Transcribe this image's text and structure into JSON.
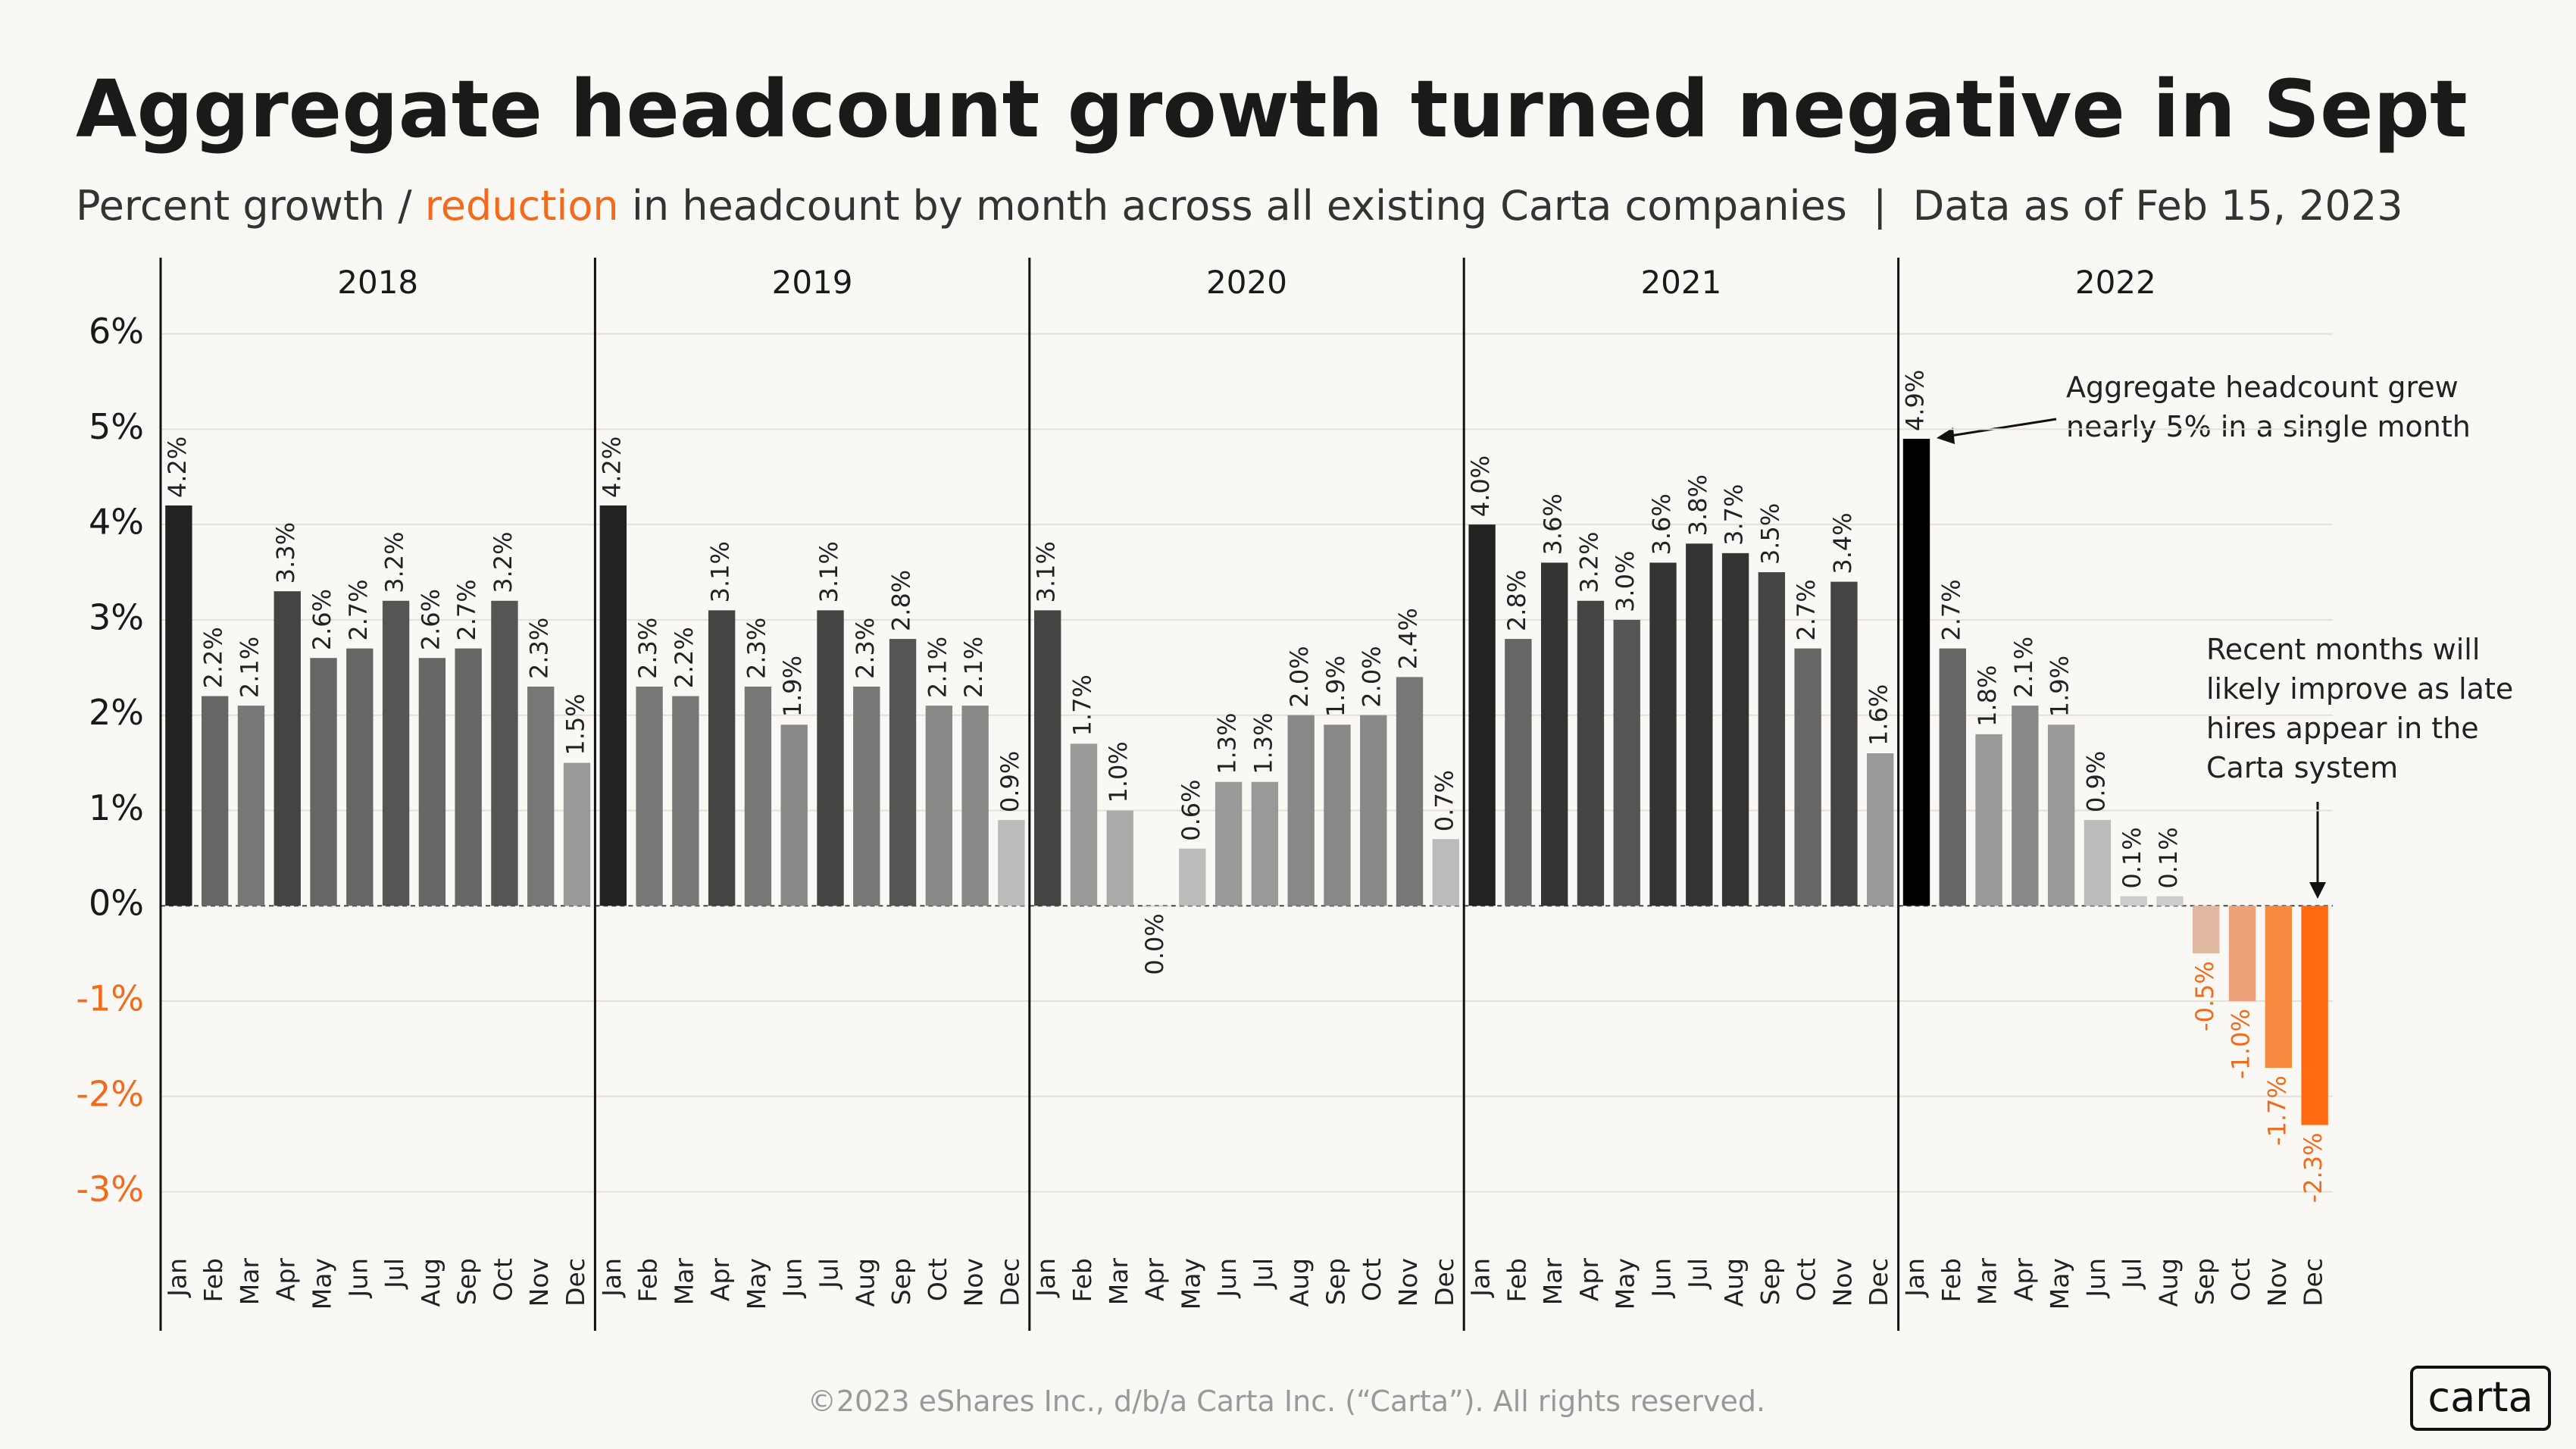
{
  "header": {
    "title": "Aggregate headcount growth turned negative in Sept",
    "subtitle": [
      "Percent growth / ",
      "reduction",
      " in headcount by month across all existing Carta companies  |  Data as of Feb 15, 2023"
    ]
  },
  "chart_data": [
    {
      "type": "bar",
      "title": "2018",
      "categories": [
        "Jan",
        "Feb",
        "Mar",
        "Apr",
        "May",
        "Jun",
        "Jul",
        "Aug",
        "Sep",
        "Oct",
        "Nov",
        "Dec"
      ],
      "values": [
        4.2,
        2.2,
        2.1,
        3.3,
        2.6,
        2.7,
        3.2,
        2.6,
        2.7,
        3.2,
        2.3,
        1.5
      ],
      "value_labels": [
        "4.2%",
        "2.2%",
        "2.1%",
        "3.3%",
        "2.6%",
        "2.7%",
        "3.2%",
        "2.6%",
        "2.7%",
        "3.2%",
        "2.3%",
        "1.5%"
      ],
      "colors": [
        "#222222",
        "#666666",
        "#777777",
        "#444444",
        "#666666",
        "#666666",
        "#555555",
        "#666666",
        "#666666",
        "#555555",
        "#777777",
        "#999999"
      ],
      "ylim": [
        -3.6,
        6.8
      ],
      "yticks": [
        {
          "value": -3,
          "label": "-3%"
        },
        {
          "value": -2,
          "label": "-2%"
        },
        {
          "value": -1,
          "label": "-1%"
        },
        {
          "value": 0,
          "label": "0%"
        },
        {
          "value": 1,
          "label": "1%"
        },
        {
          "value": 2,
          "label": "2%"
        },
        {
          "value": 3,
          "label": "3%"
        },
        {
          "value": 4,
          "label": "4%"
        },
        {
          "value": 5,
          "label": "5%"
        },
        {
          "value": 6,
          "label": "6%"
        }
      ],
      "grid": true
    },
    {
      "type": "bar",
      "title": "2019",
      "categories": [
        "Jan",
        "Feb",
        "Mar",
        "Apr",
        "May",
        "Jun",
        "Jul",
        "Aug",
        "Sep",
        "Oct",
        "Nov",
        "Dec"
      ],
      "values": [
        4.2,
        2.3,
        2.2,
        3.1,
        2.3,
        1.9,
        3.1,
        2.3,
        2.8,
        2.1,
        2.1,
        0.9
      ],
      "value_labels": [
        "4.2%",
        "2.3%",
        "2.2%",
        "3.1%",
        "2.3%",
        "1.9%",
        "3.1%",
        "2.3%",
        "2.8%",
        "2.1%",
        "2.1%",
        "0.9%"
      ],
      "colors": [
        "#222222",
        "#777777",
        "#777777",
        "#444444",
        "#777777",
        "#888888",
        "#444444",
        "#777777",
        "#555555",
        "#888888",
        "#888888",
        "#bbbbbb"
      ],
      "ylim": [
        -3.6,
        6.8
      ],
      "yticks": [
        -3,
        -2,
        -1,
        0,
        1,
        2,
        3,
        4,
        5,
        6
      ],
      "grid": true
    },
    {
      "type": "bar",
      "title": "2020",
      "categories": [
        "Jan",
        "Feb",
        "Mar",
        "Apr",
        "May",
        "Jun",
        "Jul",
        "Aug",
        "Sep",
        "Oct",
        "Nov",
        "Dec"
      ],
      "values": [
        3.1,
        1.7,
        1.0,
        0.0,
        0.6,
        1.3,
        1.3,
        2.0,
        1.9,
        2.0,
        2.4,
        0.7
      ],
      "value_labels": [
        "3.1%",
        "1.7%",
        "1.0%",
        "0.0%",
        "0.6%",
        "1.3%",
        "1.3%",
        "2.0%",
        "1.9%",
        "2.0%",
        "2.4%",
        "0.7%"
      ],
      "colors": [
        "#444444",
        "#999999",
        "#aaaaaa",
        "#bbbbbb",
        "#bbbbbb",
        "#999999",
        "#999999",
        "#888888",
        "#888888",
        "#888888",
        "#777777",
        "#bbbbbb"
      ],
      "ylim": [
        -3.6,
        6.8
      ],
      "yticks": [
        -3,
        -2,
        -1,
        0,
        1,
        2,
        3,
        4,
        5,
        6
      ],
      "grid": true
    },
    {
      "type": "bar",
      "title": "2021",
      "categories": [
        "Jan",
        "Feb",
        "Mar",
        "Apr",
        "May",
        "Jun",
        "Jul",
        "Aug",
        "Sep",
        "Oct",
        "Nov",
        "Dec"
      ],
      "values": [
        4.0,
        2.8,
        3.6,
        3.2,
        3.0,
        3.6,
        3.8,
        3.7,
        3.5,
        2.7,
        3.4,
        1.6
      ],
      "value_labels": [
        "4.0%",
        "2.8%",
        "3.6%",
        "3.2%",
        "3.0%",
        "3.6%",
        "3.8%",
        "3.7%",
        "3.5%",
        "2.7%",
        "3.4%",
        "1.6%"
      ],
      "colors": [
        "#222222",
        "#666666",
        "#333333",
        "#444444",
        "#555555",
        "#333333",
        "#333333",
        "#333333",
        "#444444",
        "#666666",
        "#444444",
        "#999999"
      ],
      "ylim": [
        -3.6,
        6.8
      ],
      "yticks": [
        -3,
        -2,
        -1,
        0,
        1,
        2,
        3,
        4,
        5,
        6
      ],
      "grid": true
    },
    {
      "type": "bar",
      "title": "2022",
      "categories": [
        "Jan",
        "Feb",
        "Mar",
        "Apr",
        "May",
        "Jun",
        "Jul",
        "Aug",
        "Sep",
        "Oct",
        "Nov",
        "Dec"
      ],
      "values": [
        4.9,
        2.7,
        1.8,
        2.1,
        1.9,
        0.9,
        0.1,
        0.1,
        -0.5,
        -1.0,
        -1.7,
        -2.3
      ],
      "value_labels": [
        "4.9%",
        "2.7%",
        "1.8%",
        "2.1%",
        "1.9%",
        "0.9%",
        "0.1%",
        "0.1%",
        "-0.5%",
        "-1.0%",
        "-1.7%",
        "-2.3%"
      ],
      "colors": [
        "#000000",
        "#666666",
        "#999999",
        "#888888",
        "#999999",
        "#bbbbbb",
        "#cccccc",
        "#cccccc",
        "#e0b89f",
        "#eea27a",
        "#f58a40",
        "#ff6a13"
      ],
      "ylim": [
        -3.6,
        6.8
      ],
      "yticks": [
        -3,
        -2,
        -1,
        0,
        1,
        2,
        3,
        4,
        5,
        6
      ],
      "grid": true,
      "annotations": [
        {
          "lines": [
            "Aggregate headcount grew",
            "nearly 5% in a single month"
          ]
        },
        {
          "lines": [
            "Recent months will",
            "likely improve as late",
            "hires appear in the",
            "Carta system"
          ]
        }
      ]
    }
  ],
  "footer": {
    "copyright": "©2023 eShares Inc., d/b/a Carta Inc. (“Carta”). All rights reserved.",
    "logo": "carta"
  }
}
